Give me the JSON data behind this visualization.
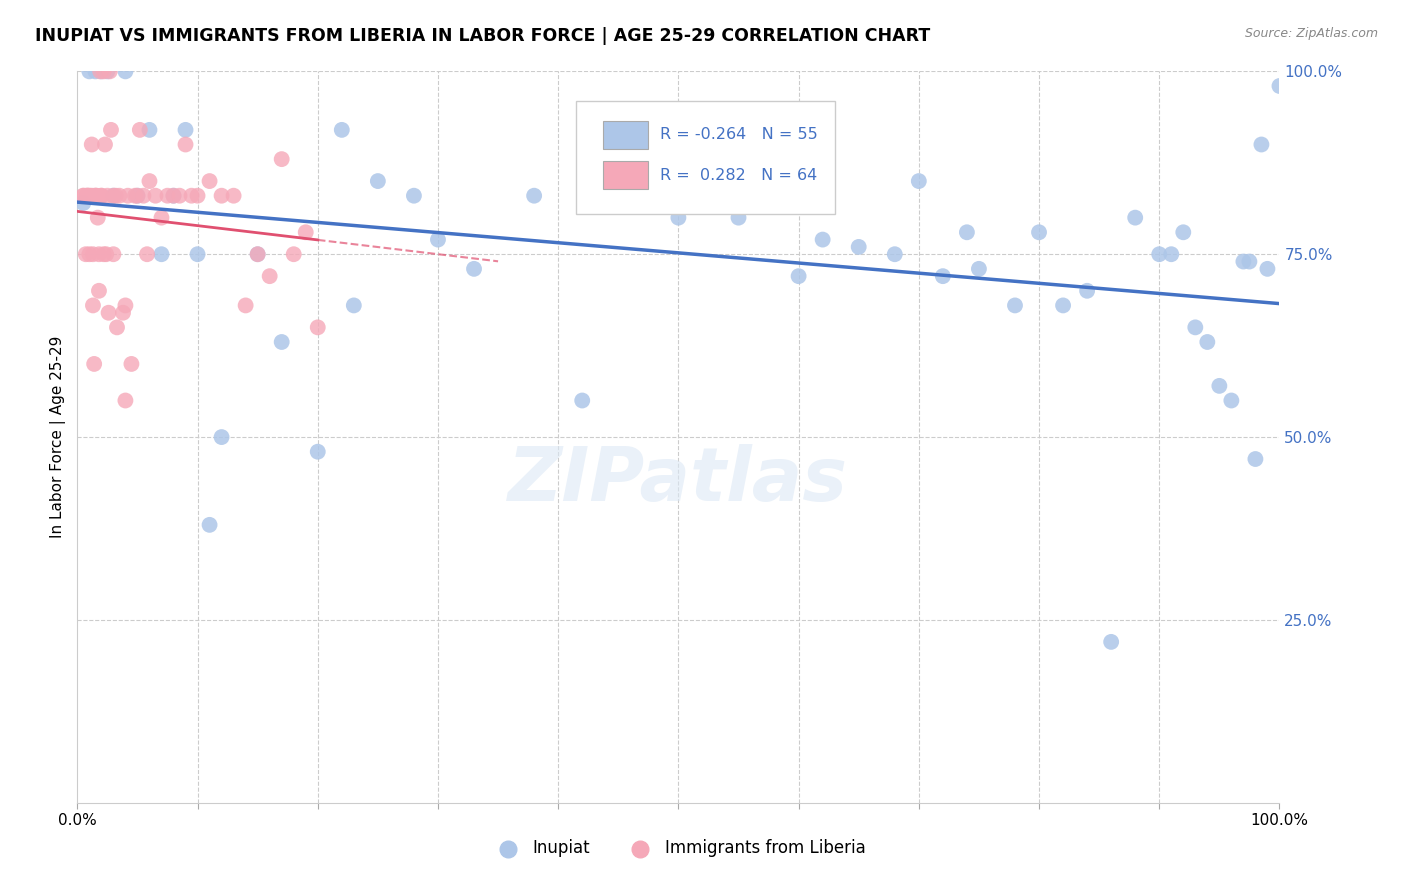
{
  "title": "INUPIAT VS IMMIGRANTS FROM LIBERIA IN LABOR FORCE | AGE 25-29 CORRELATION CHART",
  "source": "Source: ZipAtlas.com",
  "ylabel": "In Labor Force | Age 25-29",
  "legend_label1": "Inupiat",
  "legend_label2": "Immigrants from Liberia",
  "R1": -0.264,
  "N1": 55,
  "R2": 0.282,
  "N2": 64,
  "color_blue": "#adc6e8",
  "color_pink": "#f5a8b8",
  "line_blue": "#4472c4",
  "line_pink": "#e05070",
  "blue_x": [
    0.005,
    0.01,
    0.015,
    0.02,
    0.025,
    0.03,
    0.04,
    0.05,
    0.06,
    0.07,
    0.08,
    0.09,
    0.1,
    0.11,
    0.12,
    0.15,
    0.17,
    0.2,
    0.22,
    0.23,
    0.25,
    0.28,
    0.3,
    0.33,
    0.38,
    0.42,
    0.5,
    0.55,
    0.6,
    0.62,
    0.65,
    0.68,
    0.7,
    0.72,
    0.74,
    0.75,
    0.78,
    0.8,
    0.82,
    0.84,
    0.86,
    0.88,
    0.9,
    0.91,
    0.92,
    0.93,
    0.94,
    0.95,
    0.96,
    0.97,
    0.975,
    0.98,
    0.985,
    0.99,
    1.0
  ],
  "blue_y": [
    0.82,
    1.0,
    1.0,
    1.0,
    1.0,
    0.83,
    1.0,
    0.83,
    0.92,
    0.75,
    0.83,
    0.92,
    0.75,
    0.38,
    0.5,
    0.75,
    0.63,
    0.48,
    0.92,
    0.68,
    0.85,
    0.83,
    0.77,
    0.73,
    0.83,
    0.55,
    0.8,
    0.8,
    0.72,
    0.77,
    0.76,
    0.75,
    0.85,
    0.72,
    0.78,
    0.73,
    0.68,
    0.78,
    0.68,
    0.7,
    0.22,
    0.8,
    0.75,
    0.75,
    0.78,
    0.65,
    0.63,
    0.57,
    0.55,
    0.74,
    0.74,
    0.47,
    0.9,
    0.73,
    0.98
  ],
  "pink_x": [
    0.005,
    0.005,
    0.007,
    0.008,
    0.008,
    0.009,
    0.01,
    0.01,
    0.012,
    0.012,
    0.013,
    0.013,
    0.014,
    0.015,
    0.015,
    0.016,
    0.017,
    0.018,
    0.018,
    0.019,
    0.02,
    0.02,
    0.022,
    0.022,
    0.023,
    0.024,
    0.025,
    0.026,
    0.027,
    0.028,
    0.03,
    0.03,
    0.032,
    0.033,
    0.035,
    0.038,
    0.04,
    0.04,
    0.042,
    0.045,
    0.048,
    0.05,
    0.052,
    0.055,
    0.058,
    0.06,
    0.065,
    0.07,
    0.075,
    0.08,
    0.085,
    0.09,
    0.095,
    0.1,
    0.11,
    0.12,
    0.13,
    0.14,
    0.15,
    0.16,
    0.17,
    0.18,
    0.19,
    0.2
  ],
  "pink_y": [
    0.83,
    0.83,
    0.75,
    0.83,
    0.83,
    0.83,
    0.83,
    0.75,
    0.9,
    0.83,
    0.75,
    0.68,
    0.6,
    0.83,
    0.83,
    0.83,
    0.8,
    0.75,
    0.7,
    1.0,
    0.83,
    0.83,
    0.75,
    1.0,
    0.9,
    0.75,
    0.83,
    0.67,
    1.0,
    0.92,
    0.83,
    0.75,
    0.83,
    0.65,
    0.83,
    0.67,
    0.68,
    0.55,
    0.83,
    0.6,
    0.83,
    0.83,
    0.92,
    0.83,
    0.75,
    0.85,
    0.83,
    0.8,
    0.83,
    0.83,
    0.83,
    0.9,
    0.83,
    0.83,
    0.85,
    0.83,
    0.83,
    0.68,
    0.75,
    0.72,
    0.88,
    0.75,
    0.78,
    0.65
  ]
}
